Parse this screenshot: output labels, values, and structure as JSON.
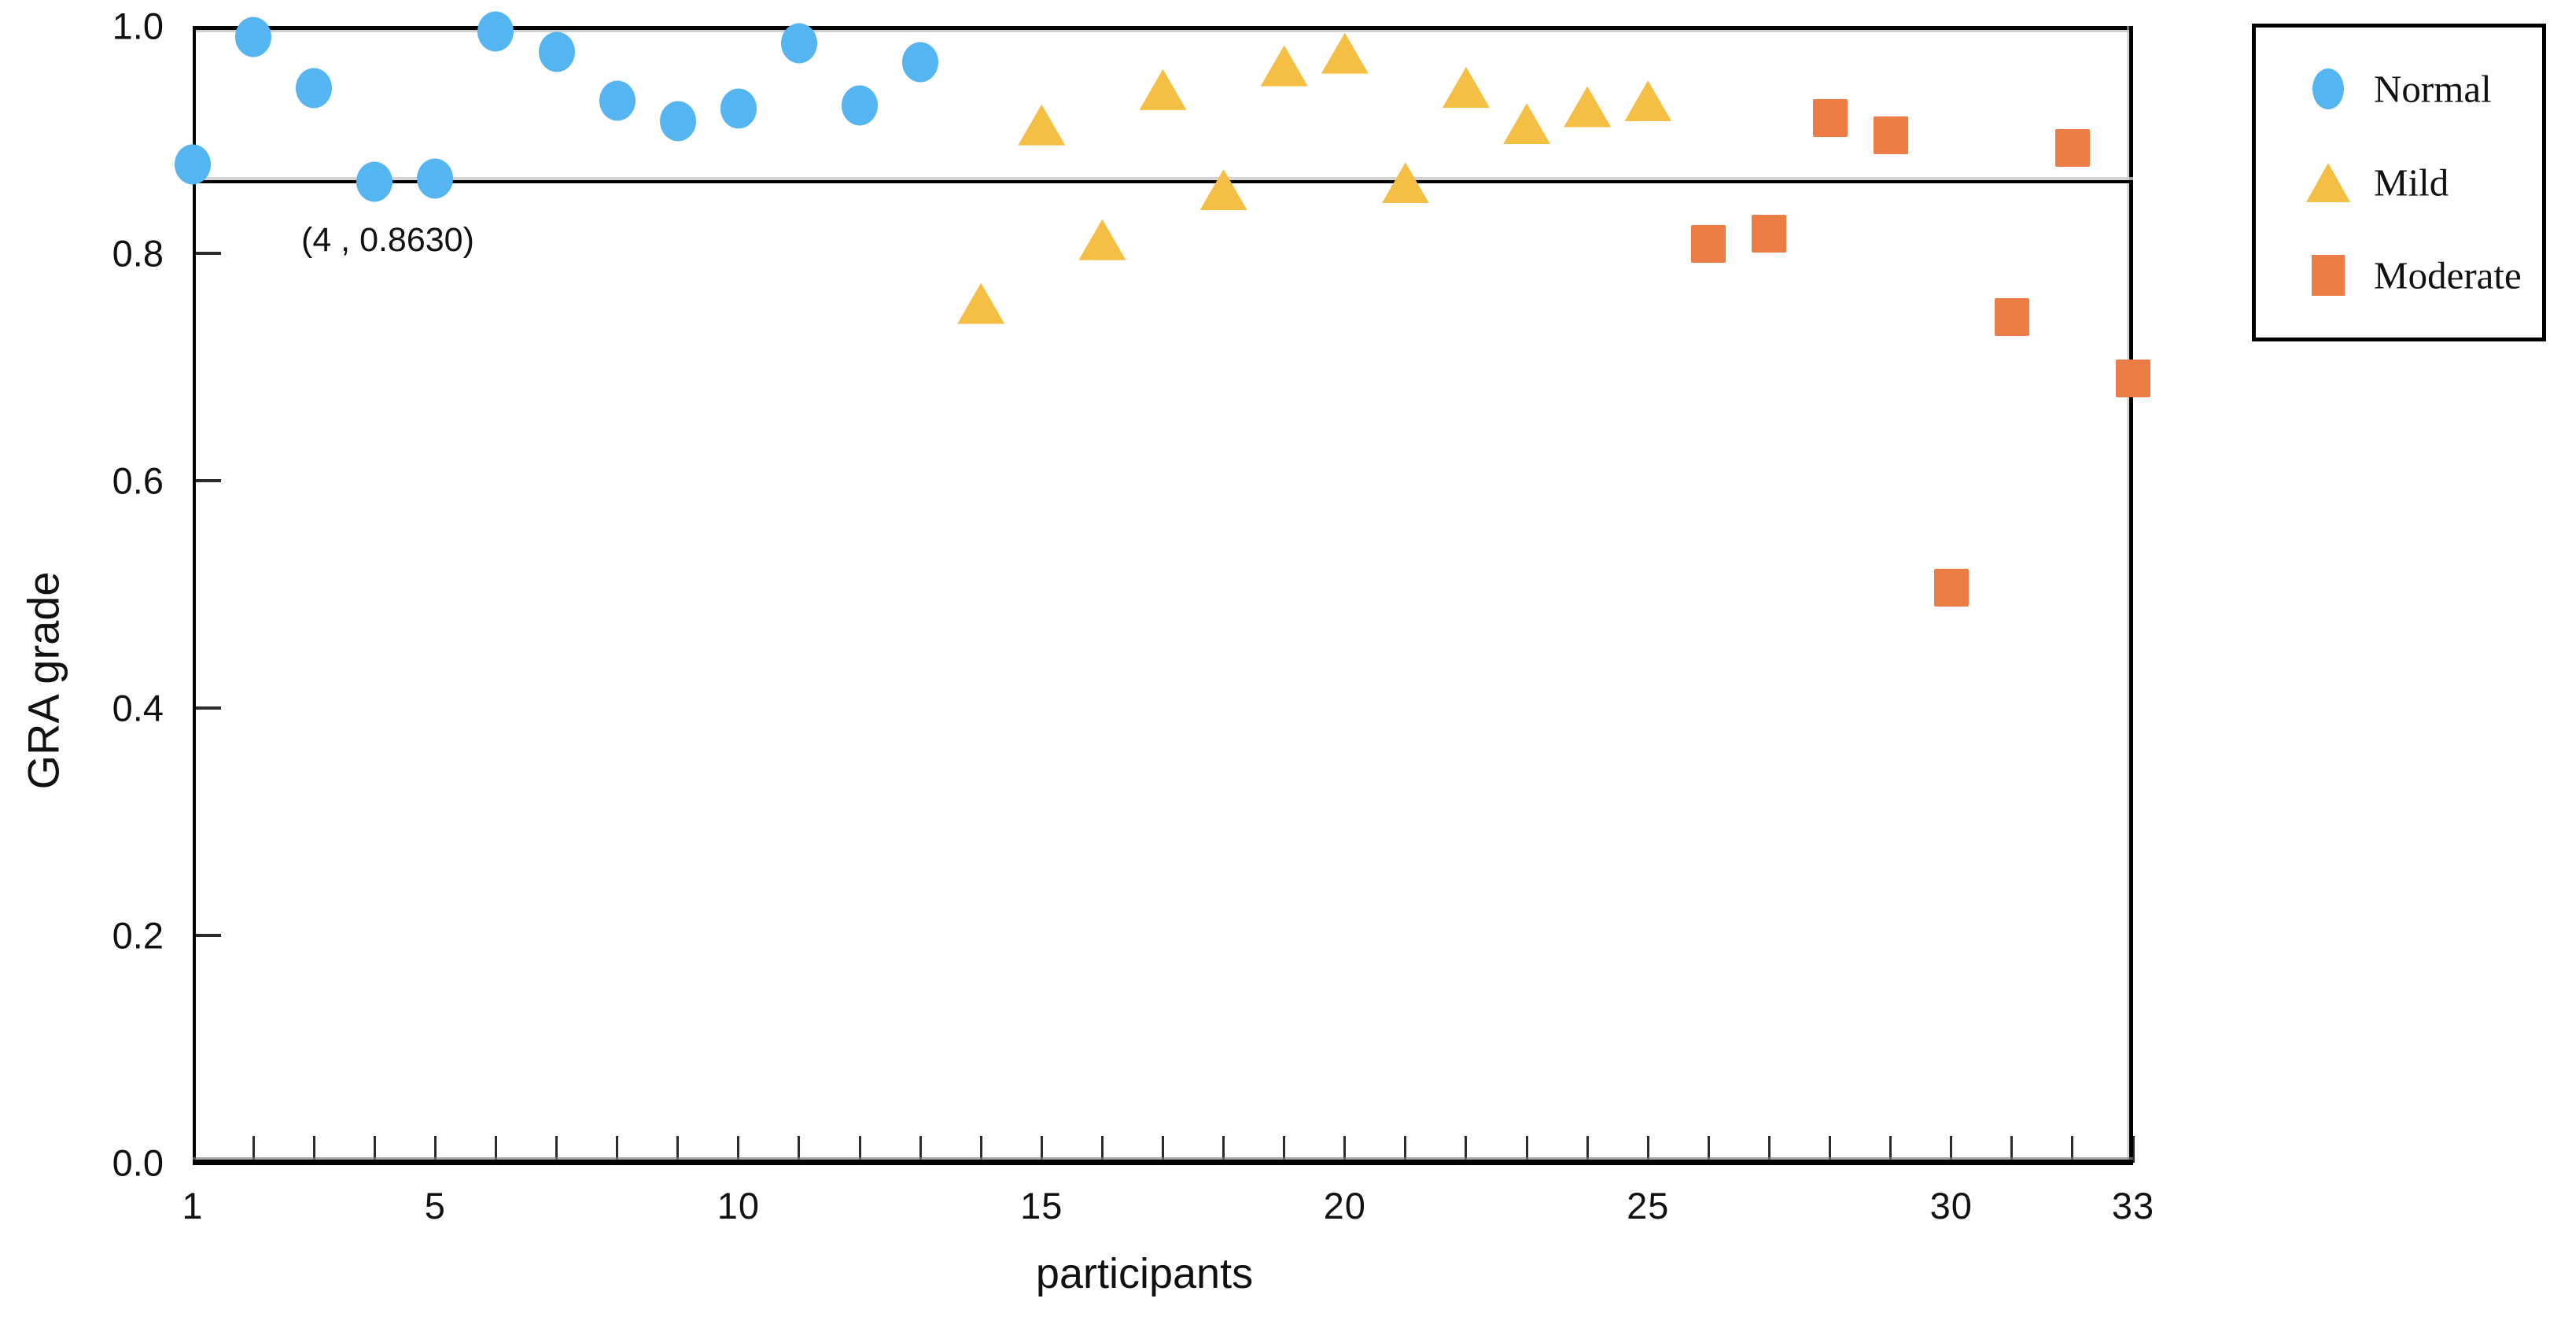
{
  "page": {
    "background": "#ffffff"
  },
  "chart_data": {
    "type": "scatter",
    "title": "",
    "xlabel": "participants",
    "ylabel": "GRA grade",
    "xlim": [
      1,
      33
    ],
    "ylim": [
      0.0,
      1.0
    ],
    "grid": false,
    "x_tick_values": [
      1,
      5,
      10,
      15,
      20,
      25,
      30,
      33
    ],
    "x_tick_labels": [
      "1",
      "5",
      "10",
      "15",
      "20",
      "25",
      "30",
      "33"
    ],
    "x_minor_tick_step": 1,
    "y_tick_values": [
      0.0,
      0.2,
      0.4,
      0.6,
      0.8,
      1.0
    ],
    "y_tick_labels": [
      "0.0",
      "0.2",
      "0.4",
      "0.6",
      "0.8",
      "1.0"
    ],
    "y_inner_tick_values": [
      0.2,
      0.4,
      0.6,
      0.8
    ],
    "reference_line": {
      "y": 0.863,
      "annotation": "(4 , 0.8630)",
      "color": "#000000"
    },
    "legend": {
      "position": "outside-top-right"
    },
    "series": [
      {
        "name": "Normal",
        "marker": "circle",
        "color": "#55B5F0",
        "x": [
          1,
          2,
          3,
          4,
          5,
          6,
          7,
          8,
          9,
          10,
          11,
          12,
          13
        ],
        "y": [
          0.878,
          0.99,
          0.945,
          0.863,
          0.866,
          0.995,
          0.977,
          0.934,
          0.916,
          0.927,
          0.985,
          0.93,
          0.968
        ]
      },
      {
        "name": "Mild",
        "marker": "triangle",
        "color": "#F5BE45",
        "x": [
          14,
          15,
          16,
          17,
          18,
          19,
          20,
          21,
          22,
          23,
          24,
          25
        ],
        "y": [
          0.756,
          0.913,
          0.812,
          0.944,
          0.856,
          0.965,
          0.976,
          0.862,
          0.946,
          0.914,
          0.929,
          0.934
        ]
      },
      {
        "name": "Moderate",
        "marker": "square",
        "color": "#EC7D47",
        "x": [
          26,
          27,
          28,
          29,
          30,
          31,
          32,
          33
        ],
        "y": [
          0.808,
          0.817,
          0.919,
          0.904,
          0.506,
          0.744,
          0.893,
          0.69
        ]
      }
    ]
  }
}
